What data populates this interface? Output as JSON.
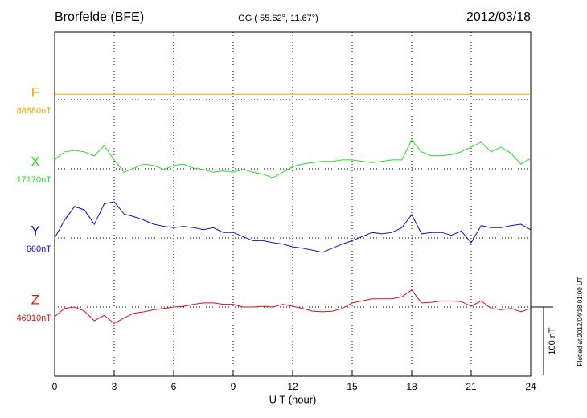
{
  "chart_data": {
    "type": "line",
    "title": "Brorfelde (BFE)",
    "subtitle": "GG ( 55.62°,  11.67°)",
    "date": "2012/03/18",
    "x_label": "U T (hour)",
    "footer": "Plotted at 2012/04/18 01:00 UT",
    "xlim": [
      0,
      24
    ],
    "xticks": [
      0,
      3,
      6,
      9,
      12,
      15,
      18,
      21,
      24
    ],
    "grid": true,
    "scale_bar": {
      "value": 100,
      "label": "100 nT"
    },
    "x": [
      0,
      0.5,
      1,
      1.5,
      2,
      2.5,
      3,
      3.5,
      4,
      4.5,
      5,
      5.5,
      6,
      6.5,
      7,
      7.5,
      8,
      8.5,
      9,
      9.5,
      10,
      10.5,
      11,
      11.5,
      12,
      12.5,
      13,
      13.5,
      14,
      14.5,
      15,
      15.5,
      16,
      16.5,
      17,
      17.5,
      18,
      18.5,
      19,
      19.5,
      20,
      20.5,
      21,
      21.5,
      22,
      22.5,
      23,
      23.5,
      24
    ],
    "series": [
      {
        "name": "F",
        "color": "#f0a500",
        "baseline": {
          "value": 88880,
          "label": "88880nT"
        },
        "values": [
          88888,
          88888,
          88888,
          88888,
          88888,
          88888,
          88888,
          88888,
          88888,
          88888,
          88888,
          88888,
          88888,
          88888,
          88888,
          88888,
          88888,
          88888,
          88888,
          88888,
          88888,
          88888,
          88888,
          88888,
          88888,
          88888,
          88888,
          88888,
          88888,
          88888,
          88888,
          88888,
          88888,
          88888,
          88888,
          88888,
          88888,
          88888,
          88888,
          88888,
          88888,
          88888,
          88888,
          88888,
          88888,
          88888,
          88888,
          88888,
          88888
        ]
      },
      {
        "name": "X",
        "color": "#22dd22",
        "baseline": {
          "value": 17170,
          "label": "17170nT"
        },
        "values": [
          17183,
          17195,
          17197,
          17195,
          17189,
          17204,
          17183,
          17165,
          17171,
          17177,
          17175,
          17169,
          17175,
          17177,
          17171,
          17169,
          17165,
          17167,
          17165,
          17169,
          17165,
          17162,
          17157,
          17165,
          17173,
          17177,
          17179,
          17181,
          17181,
          17183,
          17183,
          17181,
          17179,
          17181,
          17183,
          17183,
          17212,
          17195,
          17189,
          17189,
          17191,
          17195,
          17202,
          17209,
          17195,
          17202,
          17193,
          17177,
          17185
        ]
      },
      {
        "name": "Y",
        "color": "#1010cc",
        "baseline": {
          "value": 660,
          "label": "660nT"
        },
        "values": [
          660,
          686,
          706,
          701,
          680,
          710,
          713,
          695,
          691,
          686,
          680,
          677,
          675,
          677,
          675,
          672,
          675,
          668,
          668,
          662,
          656,
          656,
          653,
          651,
          647,
          645,
          642,
          639,
          645,
          651,
          656,
          662,
          668,
          666,
          668,
          675,
          694,
          666,
          668,
          668,
          664,
          670,
          653,
          678,
          675,
          675,
          678,
          680,
          672
        ]
      },
      {
        "name": "Z",
        "color": "#dd1111",
        "baseline": {
          "value": 46910,
          "label": "46910nT"
        },
        "values": [
          46896,
          46908,
          46910,
          46904,
          46890,
          46898,
          46886,
          46894,
          46901,
          46903,
          46906,
          46908,
          46910,
          46911,
          46914,
          46916,
          46916,
          46914,
          46914,
          46910,
          46910,
          46911,
          46910,
          46914,
          46911,
          46908,
          46904,
          46903,
          46904,
          46908,
          46916,
          46919,
          46922,
          46922,
          46922,
          46925,
          46935,
          46916,
          46917,
          46919,
          46919,
          46918,
          46911,
          46919,
          46908,
          46906,
          46908,
          46903,
          46908
        ]
      }
    ]
  }
}
